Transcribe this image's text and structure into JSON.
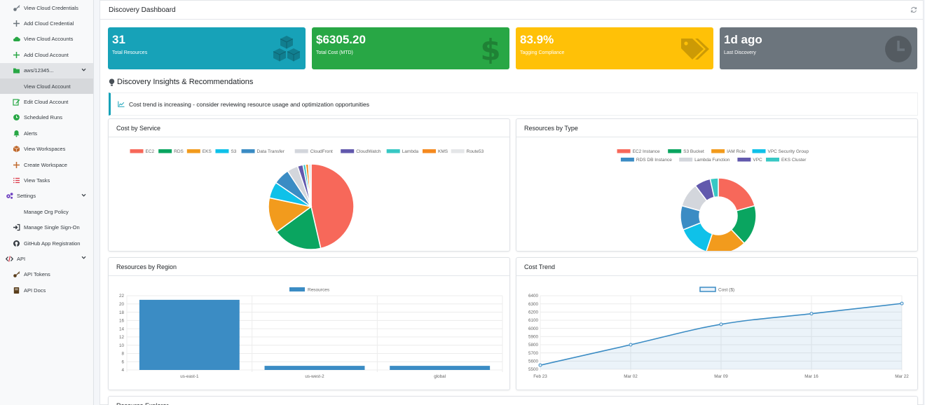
{
  "sidebar": {
    "items": [
      {
        "label": "View Cloud Credentials",
        "icon": "key-icon",
        "color": "#6c757d"
      },
      {
        "label": "Add Cloud Credential",
        "icon": "plus-icon",
        "color": "#6c757d"
      },
      {
        "label": "View Cloud Accounts",
        "icon": "cloud-icon",
        "color": "#28a745"
      },
      {
        "label": "Add Cloud Account",
        "icon": "plus-icon",
        "color": "#28a745"
      },
      {
        "label": "aws/12345...",
        "icon": "folder-icon",
        "color": "#28a745"
      },
      {
        "label": "View Cloud Account",
        "icon": "eye-icon",
        "color": "#28a745"
      },
      {
        "label": "Edit Cloud Account",
        "icon": "edit-icon",
        "color": "#28a745"
      },
      {
        "label": "Scheduled Runs",
        "icon": "clock-icon",
        "color": "#28a745"
      },
      {
        "label": "Alerts",
        "icon": "bell-icon",
        "color": "#28a745"
      },
      {
        "label": "View Workspaces",
        "icon": "box-icon",
        "color": "#c0692c"
      },
      {
        "label": "Create Workspace",
        "icon": "plus-icon",
        "color": "#c0692c"
      },
      {
        "label": "View Tasks",
        "icon": "tasks-icon",
        "color": "#dc3545"
      },
      {
        "label": "Settings",
        "icon": "gears-icon",
        "color": "#6f42c1"
      },
      {
        "label": "Manage Org Policy",
        "icon": "shield-icon",
        "color": "#6f42c1"
      },
      {
        "label": "Manage Single Sign-On",
        "icon": "sign-in-icon",
        "color": "#343a40"
      },
      {
        "label": "GitHub App Registration",
        "icon": "github-icon",
        "color": "#343a40"
      },
      {
        "label": "API",
        "icon": "code-icon",
        "color": "#343a40"
      },
      {
        "label": "API Tokens",
        "icon": "key-icon",
        "color": "#5a3e1b"
      },
      {
        "label": "API Docs",
        "icon": "book-icon",
        "color": "#5a3e1b"
      }
    ]
  },
  "header": {
    "title": "Discovery Dashboard"
  },
  "stats": [
    {
      "value": "31",
      "label": "Total Resources",
      "color": "#17a2b8",
      "icon": "cubes-icon"
    },
    {
      "value": "$6305.20",
      "label": "Total Cost (MTD)",
      "color": "#28a745",
      "icon": "dollar-icon"
    },
    {
      "value": "83.9%",
      "label": "Tagging Compliance",
      "color": "#ffc107",
      "icon": "tags-icon"
    },
    {
      "value": "1d ago",
      "label": "Last Discovery",
      "color": "#6c757d",
      "icon": "clock-icon"
    }
  ],
  "insights": {
    "title": "Discovery Insights & Recommendations",
    "items": [
      "Cost trend is increasing - consider reviewing resource usage and optimization opportunities"
    ]
  },
  "cards": {
    "cost_by_service": "Cost by Service",
    "resources_by_type": "Resources by Type",
    "resources_by_region": "Resources by Region",
    "cost_trend": "Cost Trend",
    "resource_explorer": "Resource Explorer"
  },
  "chart_data": [
    {
      "type": "pie",
      "title": "Cost by Service",
      "categories": [
        "EC2",
        "RDS",
        "EKS",
        "S3",
        "Data Transfer",
        "CloudFront",
        "CloudWatch",
        "Lambda",
        "KMS",
        "Route53"
      ],
      "values": [
        45,
        18,
        13,
        6,
        6,
        4,
        2,
        1,
        1,
        1
      ],
      "colors": [
        "#f7685a",
        "#0aa560",
        "#f29b1d",
        "#0fc1e9",
        "#3b8cc4",
        "#d3d6dc",
        "#6259ad",
        "#38c8c4",
        "#f58a1f",
        "#e4e6e8"
      ],
      "legend": "top"
    },
    {
      "type": "pie",
      "title": "Resources by Type",
      "categories": [
        "EC2 Instance",
        "S3 Bucket",
        "IAM Role",
        "VPC Security Group",
        "RDS DB Instance",
        "Lambda Function",
        "VPC",
        "EKS Cluster"
      ],
      "values": [
        6,
        5,
        5,
        4,
        3,
        3,
        2,
        1
      ],
      "colors": [
        "#f7685a",
        "#0aa560",
        "#f29b1d",
        "#0fc1e9",
        "#3b8cc4",
        "#d3d6dc",
        "#6259ad",
        "#38c8c4"
      ],
      "legend": "top",
      "doughnut": true
    },
    {
      "type": "bar",
      "title": "Resources by Region",
      "categories": [
        "us-east-1",
        "us-west-2",
        "global"
      ],
      "series": [
        {
          "name": "Resources",
          "values": [
            21,
            5,
            5
          ]
        }
      ],
      "ylim": [
        4,
        22
      ],
      "yticks": [
        4,
        6,
        8,
        10,
        12,
        14,
        16,
        18,
        20,
        22
      ],
      "color": "#3b8cc4",
      "legend": "top"
    },
    {
      "type": "line",
      "title": "Cost Trend",
      "x": [
        "Feb 23",
        "Mar 02",
        "Mar 09",
        "Mar 16",
        "Mar 22"
      ],
      "series": [
        {
          "name": "Cost ($)",
          "values": [
            5550,
            5800,
            6050,
            6180,
            6305
          ]
        }
      ],
      "ylim": [
        5500,
        6400
      ],
      "yticks": [
        5500,
        5600,
        5700,
        5800,
        5900,
        6000,
        6100,
        6200,
        6300,
        6400
      ],
      "color": "#3b8cc4",
      "fill": true,
      "legend": "top"
    }
  ]
}
